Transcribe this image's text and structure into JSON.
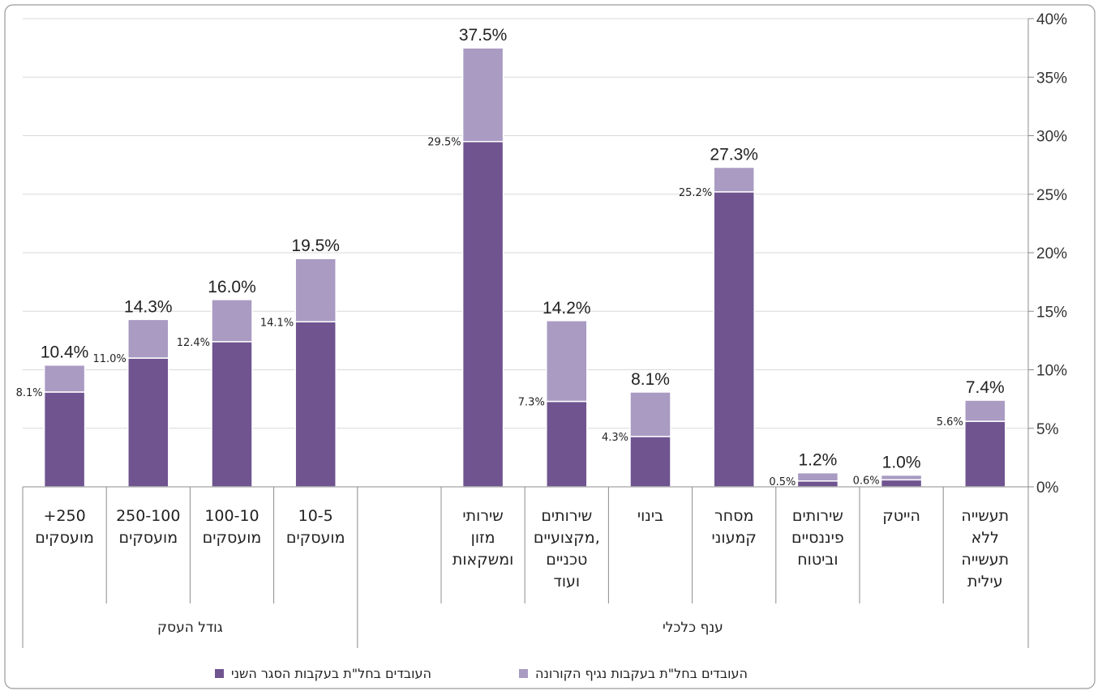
{
  "chart_data": {
    "type": "bar",
    "stacked": true,
    "title": "",
    "xlabel": "",
    "ylabel": "",
    "ylim": [
      0,
      40
    ],
    "y_ticks": [
      "0%",
      "5%",
      "10%",
      "15%",
      "20%",
      "25%",
      "30%",
      "35%",
      "40%"
    ],
    "y_axis_side": "right",
    "grid": true,
    "legend_position": "bottom",
    "colors": {
      "second_lockdown": "#6f5490",
      "corona": "#a99bc2"
    },
    "groups": [
      {
        "label": "גודל העסק",
        "categories": [
          0,
          1,
          2,
          3
        ]
      },
      {
        "label": "ענף כלכלי",
        "categories": [
          4,
          5,
          6,
          7,
          8,
          9,
          10
        ]
      }
    ],
    "categories": [
      {
        "lines": [
          "+250",
          "מועסקים"
        ]
      },
      {
        "lines": [
          "250-100",
          "מועסקים"
        ]
      },
      {
        "lines": [
          "100-10",
          "מועסקים"
        ]
      },
      {
        "lines": [
          "10-5",
          "מועסקים"
        ]
      },
      {
        "lines": [
          "שירותי",
          "מזון",
          "ומשקאות"
        ]
      },
      {
        "lines": [
          "שירותים",
          "מקצועיים,",
          "טכניים",
          "ועוד"
        ]
      },
      {
        "lines": [
          "בינוי"
        ]
      },
      {
        "lines": [
          "מסחר",
          "קמעוני"
        ]
      },
      {
        "lines": [
          "שירותים",
          "פיננסיים",
          "וביטוח"
        ]
      },
      {
        "lines": [
          "הייטק"
        ]
      },
      {
        "lines": [
          "תעשייה",
          "ללא",
          "תעשייה",
          "עילית"
        ]
      }
    ],
    "series": [
      {
        "name": "העובדים בחל\"ת בעקבות הסגר השני",
        "values": [
          8.1,
          11.0,
          12.4,
          14.1,
          29.5,
          7.3,
          4.3,
          25.2,
          0.5,
          0.6,
          5.6
        ],
        "labels": [
          "8.1%",
          "11.0%",
          "12.4%",
          "14.1%",
          "29.5%",
          "7.3%",
          "4.3%",
          "25.2%",
          "0.5%",
          "0.6%",
          "5.6%"
        ]
      },
      {
        "name": "העובדים בחל\"ת בעקבות נגיף הקורונה",
        "values": [
          2.3,
          3.3,
          3.6,
          5.4,
          8.0,
          6.9,
          3.8,
          2.1,
          0.7,
          0.4,
          1.8
        ],
        "total_labels": [
          "10.4%",
          "14.3%",
          "16.0%",
          "19.5%",
          "37.5%",
          "14.2%",
          "8.1%",
          "27.3%",
          "1.2%",
          "1.0%",
          "7.4%"
        ]
      }
    ]
  }
}
